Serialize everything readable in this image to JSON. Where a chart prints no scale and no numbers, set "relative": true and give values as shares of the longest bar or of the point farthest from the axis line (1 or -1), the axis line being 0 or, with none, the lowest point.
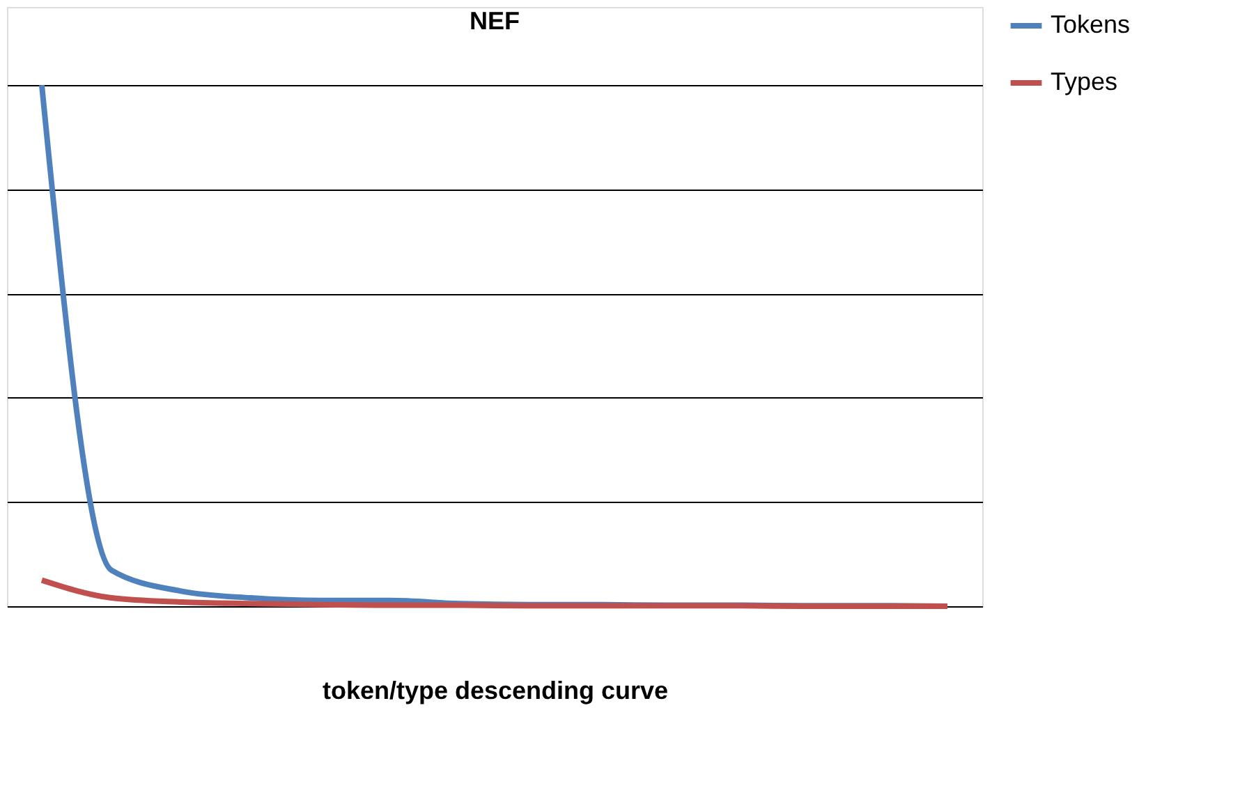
{
  "chart_data": {
    "type": "line",
    "title": "NEF",
    "xlabel": "token/type  descending curve",
    "relative": true,
    "grid": "y",
    "legend": "right",
    "categories": [
      null,
      null,
      null,
      null,
      null,
      null,
      null,
      null,
      null,
      null,
      null,
      null,
      null,
      null
    ],
    "series": [
      {
        "name": "Tokens",
        "color": "#4f81bd",
        "values": [
          1.0,
          0.069,
          0.029,
          0.016,
          0.011,
          0.011,
          0.005,
          0.003,
          0.003,
          0.002,
          0.002,
          0.001,
          0.001,
          0.0
        ]
      },
      {
        "name": "Types",
        "color": "#c0504d",
        "values": [
          0.05,
          0.016,
          0.008,
          0.005,
          0.003,
          0.002,
          0.002,
          0.001,
          0.001,
          0.001,
          0.001,
          0.0,
          0.0,
          0.0
        ]
      }
    ]
  }
}
